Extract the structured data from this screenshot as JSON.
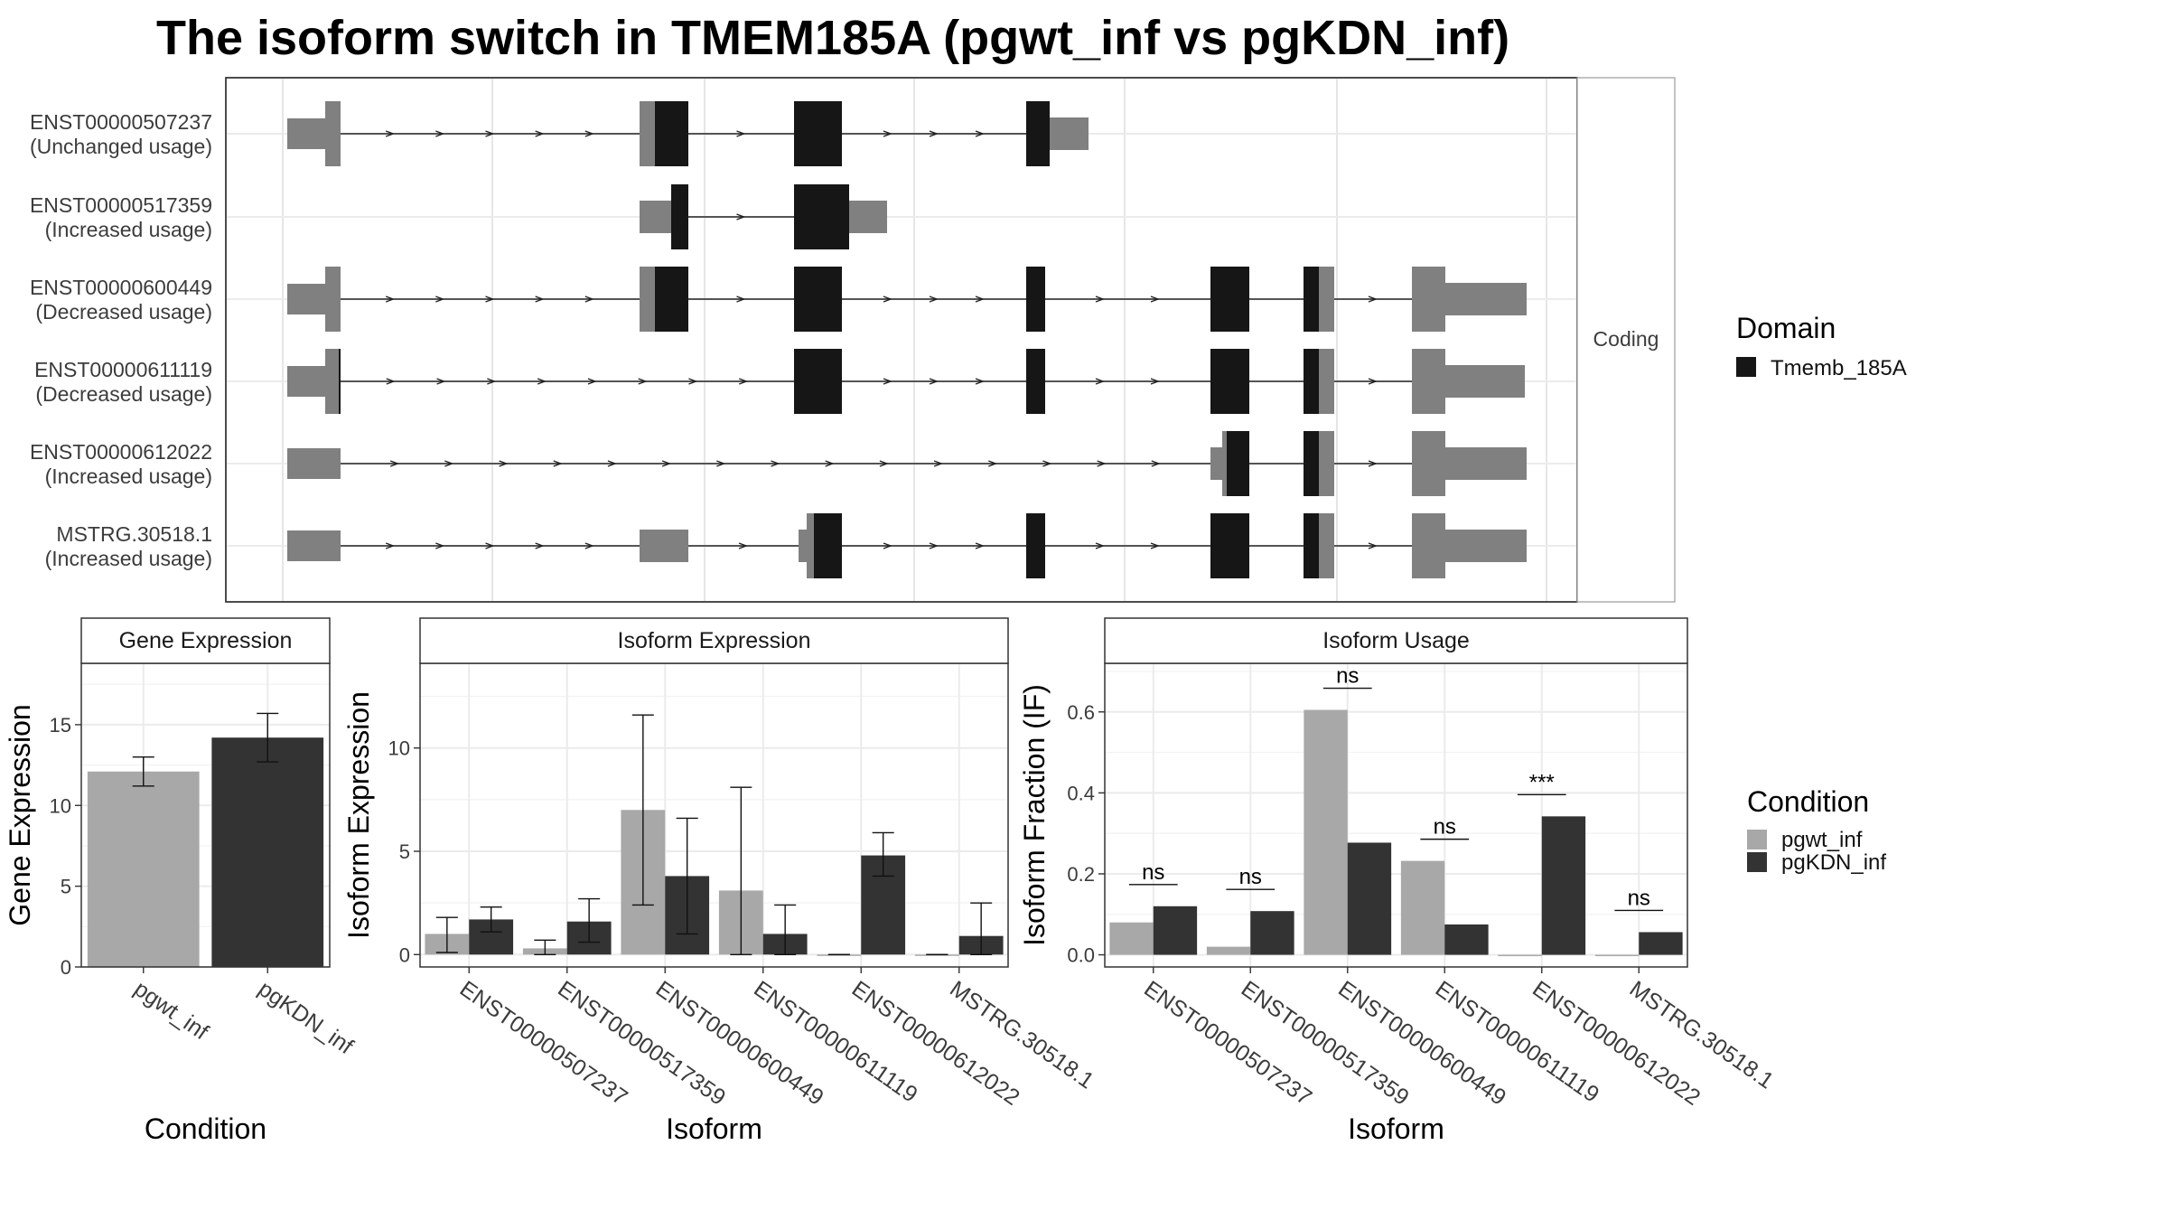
{
  "title": "The isoform switch in TMEM185A (pgwt_inf vs pgKDN_inf)",
  "colors": {
    "domain": "#161616",
    "utr": "#808080",
    "cond1": "#a8a8a8",
    "cond2": "#333333",
    "grid": "#ebebeb"
  },
  "structure": {
    "facet_label": "Coding",
    "isoforms": [
      {
        "id": "ENST00000507237",
        "usage": "(Unchanged usage)"
      },
      {
        "id": "ENST00000517359",
        "usage": "(Increased usage)"
      },
      {
        "id": "ENST00000600449",
        "usage": "(Decreased usage)"
      },
      {
        "id": "ENST00000611119",
        "usage": "(Decreased usage)"
      },
      {
        "id": "ENST00000612022",
        "usage": "(Increased usage)"
      },
      {
        "id": "MSTRG.30518.1",
        "usage": "(Increased usage)"
      }
    ]
  },
  "domain_legend": {
    "title": "Domain",
    "items": [
      "Tmemb_185A"
    ]
  },
  "condition_legend": {
    "title": "Condition",
    "items": [
      "pgwt_inf",
      "pgKDN_inf"
    ]
  },
  "chart_data": [
    {
      "type": "bar",
      "title": "Gene Expression",
      "xlabel": "Condition",
      "ylabel": "Gene Expression",
      "categories": [
        "pgwt_inf",
        "pgKDN_inf"
      ],
      "values": [
        12.1,
        14.2
      ],
      "errors_low": [
        11.2,
        12.7
      ],
      "errors_high": [
        13.0,
        15.7
      ],
      "ylim": [
        0,
        18.8
      ],
      "yticks": [
        0,
        5,
        10,
        15
      ]
    },
    {
      "type": "bar",
      "title": "Isoform Expression",
      "xlabel": "Isoform",
      "ylabel": "Isoform Expression",
      "categories": [
        "ENST00000507237",
        "ENST00000517359",
        "ENST00000600449",
        "ENST00000611119",
        "ENST00000612022",
        "MSTRG.30518.1"
      ],
      "series": [
        {
          "name": "pgwt_inf",
          "values": [
            1.0,
            0.3,
            7.0,
            3.1,
            0.0,
            0.0
          ],
          "errors_low": [
            0.1,
            0.0,
            2.4,
            0.0,
            0.0,
            0.0
          ],
          "errors_high": [
            1.8,
            0.7,
            11.6,
            8.1,
            0.0,
            0.0
          ]
        },
        {
          "name": "pgKDN_inf",
          "values": [
            1.7,
            1.6,
            3.8,
            1.0,
            4.8,
            0.9
          ],
          "errors_low": [
            1.1,
            0.6,
            1.0,
            0.0,
            3.8,
            0.0
          ],
          "errors_high": [
            2.3,
            2.7,
            6.6,
            2.4,
            5.9,
            2.5
          ]
        }
      ],
      "ylim": [
        -0.6,
        14.1
      ],
      "yticks": [
        0,
        5,
        10
      ]
    },
    {
      "type": "bar",
      "title": "Isoform Usage",
      "xlabel": "Isoform",
      "ylabel": "Isoform Fraction (IF)",
      "categories": [
        "ENST00000507237",
        "ENST00000517359",
        "ENST00000600449",
        "ENST00000611119",
        "ENST00000612022",
        "MSTRG.30518.1"
      ],
      "series": [
        {
          "name": "pgwt_inf",
          "values": [
            0.08,
            0.02,
            0.605,
            0.232,
            0.0,
            0.0
          ]
        },
        {
          "name": "pgKDN_inf",
          "values": [
            0.12,
            0.108,
            0.277,
            0.075,
            0.342,
            0.056
          ]
        }
      ],
      "significance": [
        "ns",
        "ns",
        "ns",
        "ns",
        "***",
        "ns"
      ],
      "ylim": [
        -0.03,
        0.72
      ],
      "yticks": [
        0.0,
        0.2,
        0.4,
        0.6
      ],
      "ytick_labels": [
        "0.0",
        "0.2",
        "0.4",
        "0.6"
      ]
    }
  ]
}
